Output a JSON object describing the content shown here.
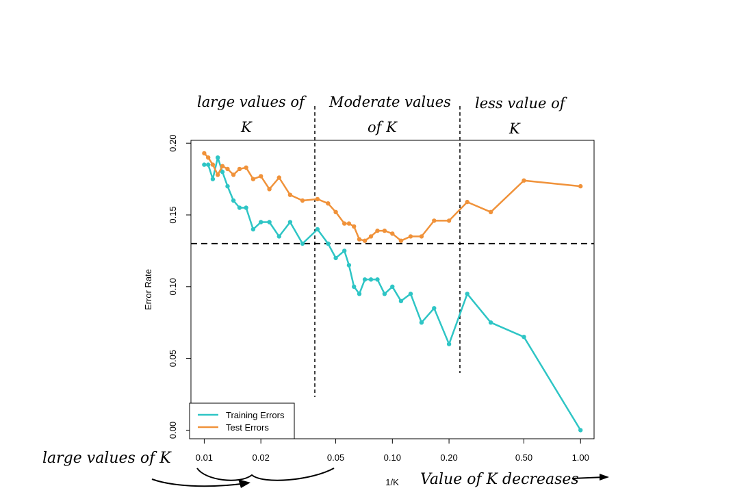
{
  "chart_data": {
    "type": "line",
    "title": "",
    "xlabel": "1/K",
    "ylabel": "Error Rate",
    "x_scale": "log",
    "xlim": [
      0.0085,
      1.18
    ],
    "ylim": [
      -0.006,
      0.202
    ],
    "x_ticks": [
      0.01,
      0.02,
      0.05,
      0.1,
      0.2,
      0.5,
      1.0
    ],
    "x_tick_labels": [
      "0.01",
      "0.02",
      "0.05",
      "0.10",
      "0.20",
      "0.50",
      "1.00"
    ],
    "y_ticks": [
      0.0,
      0.05,
      0.1,
      0.15,
      0.2
    ],
    "y_tick_labels": [
      "0.00",
      "0.05",
      "0.10",
      "0.15",
      "0.20"
    ],
    "grid": false,
    "legend_position": "bottom-left",
    "reference_line": {
      "y": 0.13,
      "style": "dashed"
    },
    "series": [
      {
        "name": "Training Errors",
        "color": "#2ec5c5",
        "x": [
          0.01,
          0.0105,
          0.0111,
          0.0118,
          0.0125,
          0.0133,
          0.0143,
          0.0154,
          0.0167,
          0.0182,
          0.02,
          0.0222,
          0.025,
          0.0286,
          0.0333,
          0.04,
          0.0455,
          0.05,
          0.0556,
          0.0588,
          0.0625,
          0.0667,
          0.0714,
          0.0769,
          0.0833,
          0.0909,
          0.1,
          0.1111,
          0.125,
          0.1429,
          0.1667,
          0.2,
          0.25,
          0.3333,
          0.5,
          1.0
        ],
        "y": [
          0.185,
          0.185,
          0.175,
          0.19,
          0.18,
          0.17,
          0.16,
          0.155,
          0.155,
          0.14,
          0.145,
          0.145,
          0.135,
          0.145,
          0.13,
          0.14,
          0.13,
          0.12,
          0.125,
          0.115,
          0.1,
          0.095,
          0.105,
          0.105,
          0.105,
          0.095,
          0.1,
          0.09,
          0.095,
          0.075,
          0.085,
          0.06,
          0.095,
          0.075,
          0.065,
          0.0
        ]
      },
      {
        "name": "Test Errors",
        "color": "#f0923a",
        "x": [
          0.01,
          0.0105,
          0.0111,
          0.0118,
          0.0125,
          0.0133,
          0.0143,
          0.0154,
          0.0167,
          0.0182,
          0.02,
          0.0222,
          0.025,
          0.0286,
          0.0333,
          0.04,
          0.0455,
          0.05,
          0.0556,
          0.0588,
          0.0625,
          0.0667,
          0.0714,
          0.0769,
          0.0833,
          0.0909,
          0.1,
          0.1111,
          0.125,
          0.1429,
          0.1667,
          0.2,
          0.25,
          0.3333,
          0.5,
          1.0
        ],
        "y": [
          0.193,
          0.19,
          0.185,
          0.178,
          0.184,
          0.182,
          0.178,
          0.182,
          0.183,
          0.175,
          0.177,
          0.168,
          0.176,
          0.164,
          0.16,
          0.161,
          0.158,
          0.152,
          0.144,
          0.144,
          0.142,
          0.133,
          0.132,
          0.135,
          0.139,
          0.139,
          0.137,
          0.132,
          0.135,
          0.135,
          0.146,
          0.146,
          0.159,
          0.152,
          0.174,
          0.17
        ]
      }
    ]
  },
  "annotations": {
    "region_large": [
      "large values of",
      "K"
    ],
    "region_moderate": [
      "Moderate values",
      "of K"
    ],
    "region_less": [
      "less value of",
      "K"
    ],
    "bottom_left_note": "large values of K",
    "bottom_right_note": "Value of K decreases"
  },
  "colors": {
    "axis": "#000000",
    "reference_line": "#000000",
    "divider_lines": "#000000"
  }
}
